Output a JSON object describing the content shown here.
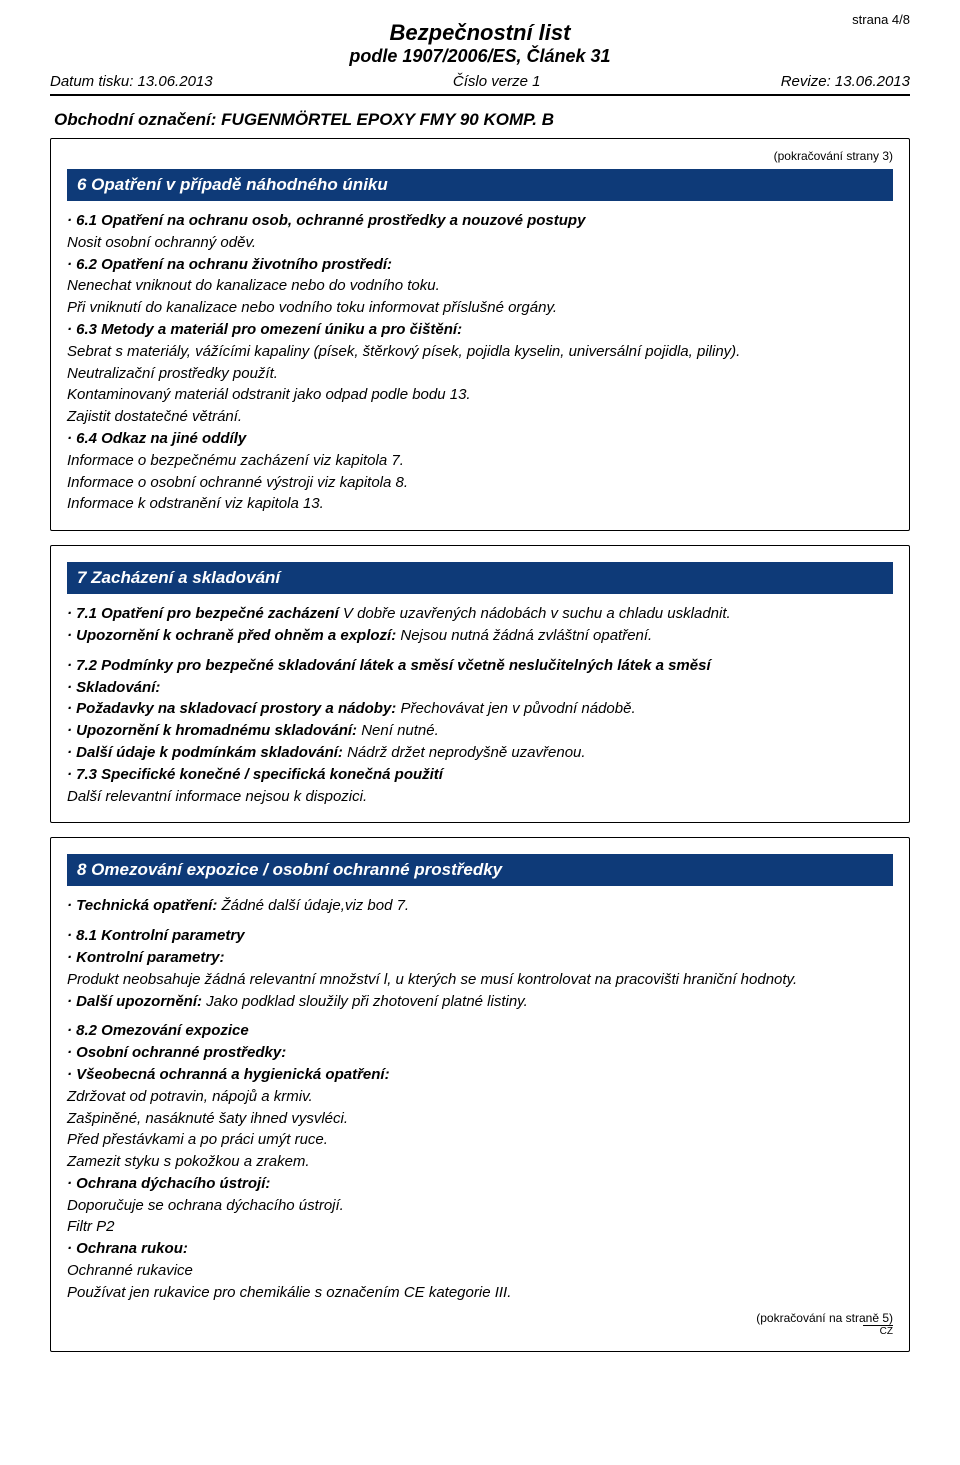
{
  "page_number": "strana 4/8",
  "header": {
    "title": "Bezpečnostní list",
    "subtitle": "podle 1907/2006/ES, Článek 31"
  },
  "meta": {
    "print_date": "Datum tisku: 13.06.2013",
    "version": "Číslo verze 1",
    "revision": "Revize: 13.06.2013"
  },
  "product": "Obchodní označení: FUGENMÖRTEL EPOXY FMY 90 KOMP. B",
  "cont_from": "(pokračování  strany 3)",
  "cont_to": "(pokračování na straně 5)",
  "lang": "CZ",
  "section6": {
    "title": "6 Opatření v případě náhodného úniku",
    "p1_h": "· 6.1 Opatření na ochranu osob, ochranné prostředky a nouzové postupy",
    "p1_t": "Nosit osobní ochranný oděv.",
    "p2_h": "· 6.2 Opatření na ochranu životního prostředí:",
    "p2_t1": "Nenechat vniknout do kanalizace nebo do vodního toku.",
    "p2_t2": "Při vniknutí do kanalizace nebo vodního toku informovat příslušné orgány.",
    "p3_h": "· 6.3 Metody a materiál pro omezení úniku a pro čištění:",
    "p3_t1": "Sebrat s materiály, vážícími kapaliny (písek, štěrkový písek, pojidla kyselin, universální pojidla, piliny).",
    "p3_t2": "Neutralizační prostředky použít.",
    "p3_t3": "Kontaminovaný materiál odstranit jako odpad podle bodu 13.",
    "p3_t4": "Zajistit dostatečné větrání.",
    "p4_h": "· 6.4 Odkaz na jiné oddíly",
    "p4_t1": "Informace o bezpečnému zacházení viz kapitola 7.",
    "p4_t2": "Informace o osobní ochranné výstroji viz kapitola 8.",
    "p4_t3": "Informace k odstranění viz kapitola 13."
  },
  "section7": {
    "title": "7 Zacházení a skladování",
    "l1a": "· 7.1 Opatření pro bezpečné zacházení",
    "l1b": " V dobře uzavřených nádobách v suchu a chladu uskladnit.",
    "l2a": "· Upozornění k ochraně před ohněm a explozí:",
    "l2b": " Nejsou nutná žádná zvláštní opatření.",
    "l3": "· 7.2 Podmínky pro bezpečné skladování látek a směsí včetně neslučitelných látek a směsí",
    "l4": "· Skladování:",
    "l5a": "· Požadavky na skladovací prostory a nádoby:",
    "l5b": " Přechovávat jen v původní nádobě.",
    "l6a": "· Upozornění k hromadnému skladování:",
    "l6b": " Není nutné.",
    "l7a": "· Další údaje k podmínkám skladování:",
    "l7b": " Nádrž držet neprodyšně uzavřenou.",
    "l8": "· 7.3 Specifické konečné / specifická konečná použití",
    "l8t": "Další relevantní informace nejsou k dispozici."
  },
  "section8": {
    "title": "8 Omezování expozice / osobní ochranné prostředky",
    "t1a": "· Technická opatření:",
    "t1b": " Žádné další údaje,viz bod 7.",
    "h81": "· 8.1 Kontrolní parametry",
    "kp": "· Kontrolní parametry:",
    "kp_t": "Produkt neobsahuje žádná relevantní množství l, u kterých se musí kontrolovat na pracovišti hraniční hodnoty.",
    "du_a": "· Další upozornění:",
    "du_b": " Jako podklad sloužily při zhotovení platné listiny.",
    "h82": "· 8.2 Omezování expozice",
    "oop": "· Osobní ochranné prostředky:",
    "vse": "· Všeobecná ochranná a hygienická opatření:",
    "vse_t1": "Zdržovat od potravin, nápojů a krmiv.",
    "vse_t2": "Zašpiněné, nasáknuté šaty ihned vysvléci.",
    "vse_t3": "Před přestávkami a po práci umýt ruce.",
    "vse_t4": "Zamezit styku s pokožkou a zrakem.",
    "odu": "· Ochrana dýchacího ústrojí:",
    "odu_t1": "Doporučuje se ochrana dýchacího ústrojí.",
    "odu_t2": "Filtr P2",
    "or": "· Ochrana rukou:",
    "or_t1": "Ochranné rukavice",
    "or_t2": "Používat jen rukavice pro chemikálie s označením CE kategorie III."
  }
}
